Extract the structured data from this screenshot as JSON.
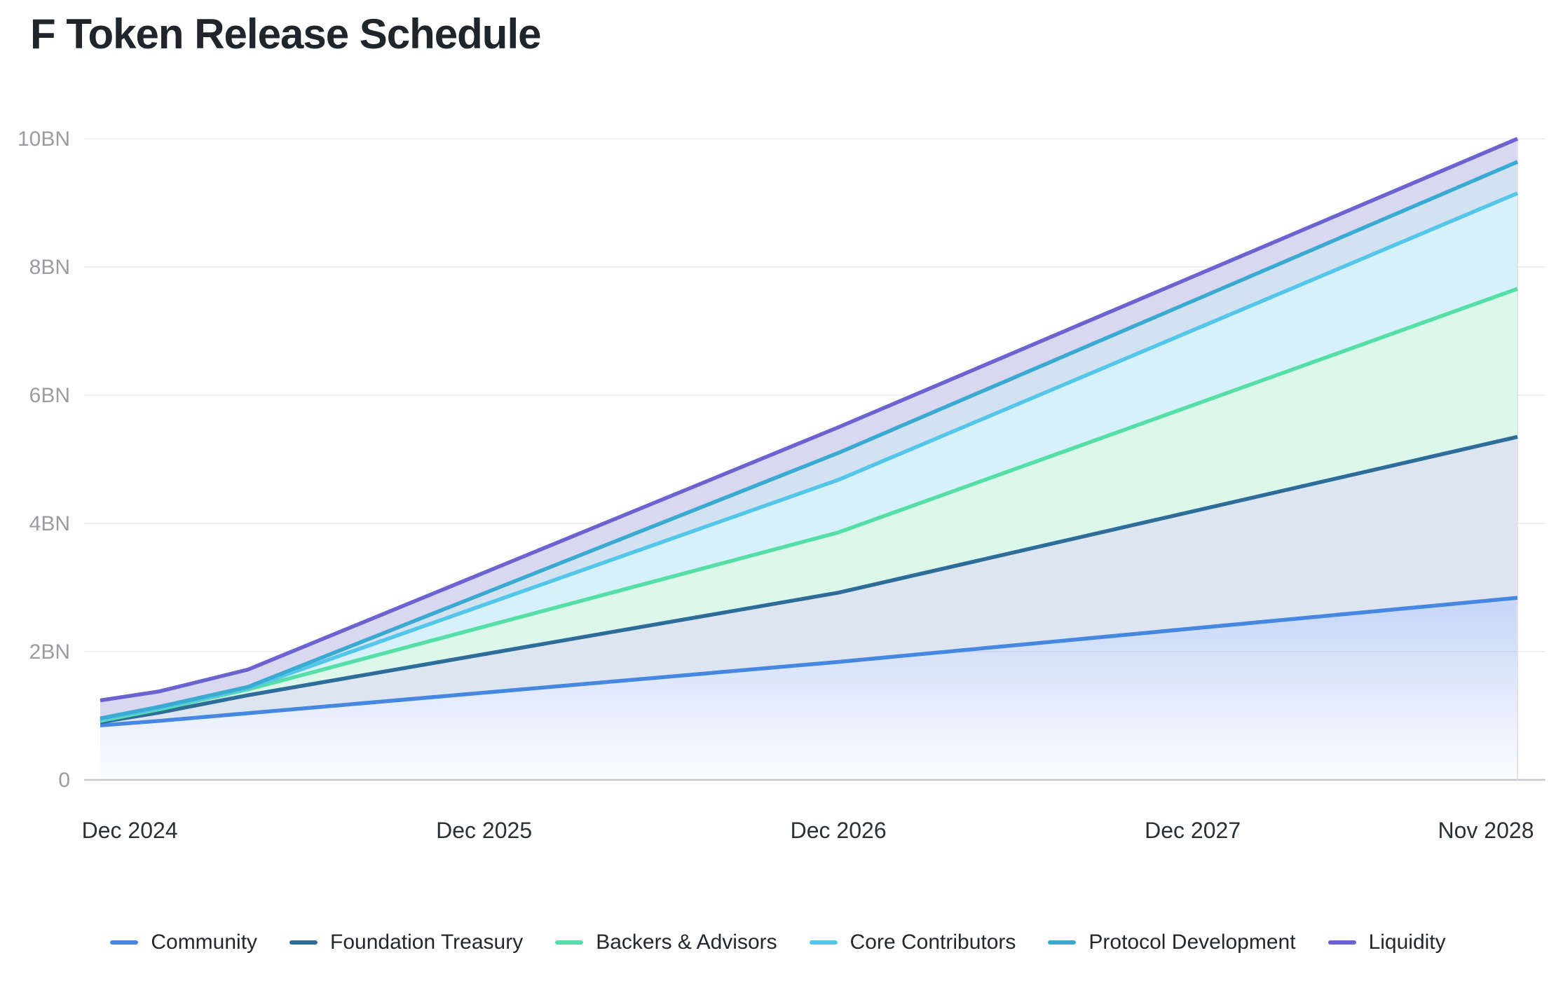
{
  "page": {
    "title": "F Token Release Schedule",
    "background": "#ffffff"
  },
  "chart_data": {
    "type": "area",
    "stacked": true,
    "title": "F Token Release Schedule",
    "unit": "BN tokens",
    "xlabel": "",
    "ylabel": "",
    "grid": "horizontal",
    "legend_position": "bottom",
    "ylim": [
      0,
      10
    ],
    "xlim_months": [
      0,
      48
    ],
    "x": [
      0,
      2,
      5,
      25,
      48
    ],
    "x_point_labels": [
      "Nov 2024",
      "Jan 2025",
      "Apr 2025",
      "Dec 2026",
      "Nov 2028"
    ],
    "series": [
      {
        "name": "Community",
        "color": "#4687e2",
        "values": [
          0.85,
          0.92,
          1.04,
          1.84,
          2.84
        ],
        "cumulative": [
          0.85,
          0.92,
          1.04,
          1.84,
          2.84
        ]
      },
      {
        "name": "Foundation Treasury",
        "color": "#2e6c9a",
        "values": [
          0.05,
          0.13,
          0.28,
          1.08,
          2.51
        ],
        "cumulative": [
          0.9,
          1.05,
          1.32,
          2.92,
          5.35
        ]
      },
      {
        "name": "Backers & Advisors",
        "color": "#55dfa6",
        "values": [
          0.02,
          0.05,
          0.09,
          0.94,
          2.31
        ],
        "cumulative": [
          0.92,
          1.1,
          1.41,
          3.86,
          7.66
        ]
      },
      {
        "name": "Core Contributors",
        "color": "#53c6ea",
        "values": [
          0.02,
          0.02,
          0.02,
          0.82,
          1.49
        ],
        "cumulative": [
          0.94,
          1.12,
          1.43,
          4.68,
          9.15
        ]
      },
      {
        "name": "Protocol Development",
        "color": "#3aaad0",
        "values": [
          0.02,
          0.02,
          0.02,
          0.42,
          0.49
        ],
        "cumulative": [
          0.96,
          1.14,
          1.45,
          5.1,
          9.64
        ]
      },
      {
        "name": "Liquidity",
        "color": "#6b63d0",
        "values": [
          0.28,
          0.24,
          0.27,
          0.4,
          0.36
        ],
        "cumulative": [
          1.24,
          1.38,
          1.72,
          5.5,
          10.0
        ]
      }
    ],
    "band_fills": [
      "gradient-community",
      "#dde5f0",
      "#dbf8ea",
      "#d6f1f9",
      "#d2e2f0",
      "#dad8f1"
    ],
    "community_gradient": {
      "top": "rgba(88,134,230,0.34)",
      "bottom": "rgba(88,134,230,0.02)"
    },
    "y_ticks": [
      {
        "value": 0,
        "label": "0"
      },
      {
        "value": 2,
        "label": "2BN"
      },
      {
        "value": 4,
        "label": "4BN"
      },
      {
        "value": 6,
        "label": "6BN"
      },
      {
        "value": 8,
        "label": "8BN"
      },
      {
        "value": 10,
        "label": "10BN"
      }
    ],
    "x_ticks": [
      {
        "month": 1,
        "label": "Dec 2024"
      },
      {
        "month": 13,
        "label": "Dec 2025"
      },
      {
        "month": 25,
        "label": "Dec 2026"
      },
      {
        "month": 37,
        "label": "Dec 2027"
      },
      {
        "month": 48,
        "label": "Nov 2028"
      }
    ],
    "colors": {
      "gridline": "#ebebee",
      "axis_line": "#c7c9ce",
      "right_edge_line": "#e2e2e8",
      "y_tick_text": "#9b9ba1",
      "x_tick_text": "#2b3036"
    }
  }
}
